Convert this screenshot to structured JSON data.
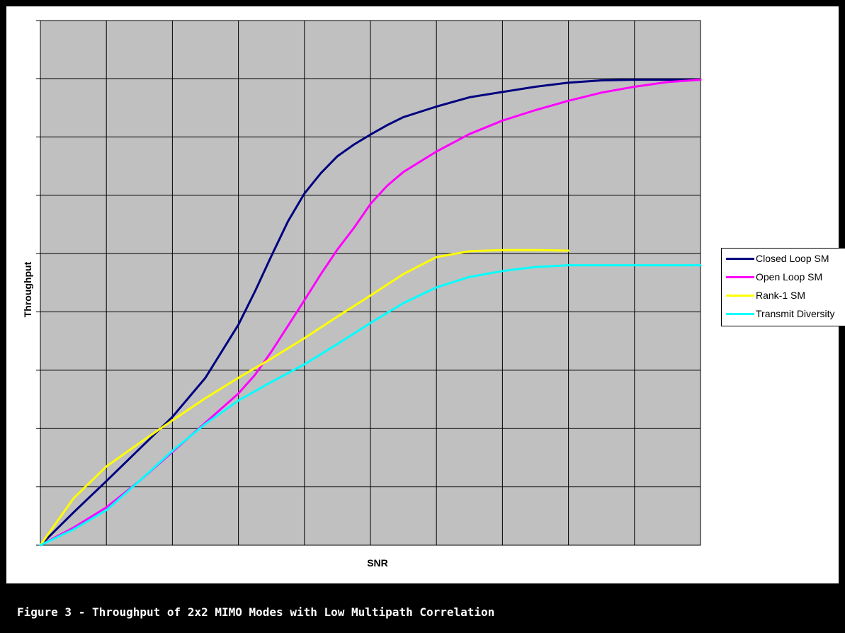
{
  "caption": "Figure 3 - Throughput of 2x2 MIMO Modes with Low Multipath Correlation",
  "chart_data": {
    "type": "line",
    "title": "",
    "xlabel": "SNR",
    "ylabel": "Throughput",
    "xlim": [
      0,
      10
    ],
    "ylim": [
      0,
      8
    ],
    "grid": true,
    "plot_background": "#c0c0c0",
    "legend_position": "right",
    "series": [
      {
        "name": "Closed Loop SM",
        "color": "#000080",
        "x": [
          0,
          0.5,
          1,
          1.5,
          2,
          2.5,
          3,
          3.25,
          3.5,
          3.75,
          4,
          4.25,
          4.5,
          4.75,
          5,
          5.25,
          5.5,
          6,
          6.5,
          7,
          7.5,
          8,
          8.5,
          9,
          9.5,
          10
        ],
        "y": [
          0,
          0.56,
          1.1,
          1.65,
          2.2,
          2.87,
          3.78,
          4.35,
          4.96,
          5.55,
          6.03,
          6.38,
          6.67,
          6.87,
          7.04,
          7.2,
          7.34,
          7.52,
          7.68,
          7.77,
          7.86,
          7.93,
          7.97,
          7.98,
          7.98,
          7.98
        ]
      },
      {
        "name": "Open Loop SM",
        "color": "#ff00ff",
        "x": [
          0,
          0.5,
          1,
          1.5,
          2,
          2.5,
          3,
          3.25,
          3.5,
          3.75,
          4,
          4.25,
          4.5,
          4.75,
          5,
          5.25,
          5.5,
          6,
          6.5,
          7,
          7.5,
          8,
          8.5,
          9,
          9.5,
          10
        ],
        "y": [
          0,
          0.3,
          0.65,
          1.1,
          1.6,
          2.1,
          2.6,
          2.92,
          3.32,
          3.76,
          4.2,
          4.65,
          5.07,
          5.44,
          5.85,
          6.16,
          6.4,
          6.75,
          7.05,
          7.28,
          7.46,
          7.62,
          7.76,
          7.86,
          7.94,
          7.98
        ]
      },
      {
        "name": "Rank-1 SM",
        "color": "#ffff00",
        "x": [
          0,
          0.5,
          1,
          1.5,
          2,
          2.5,
          3,
          3.5,
          4,
          4.5,
          5,
          5.5,
          6,
          6.5,
          7,
          7.5,
          8
        ],
        "y": [
          0,
          0.8,
          1.35,
          1.75,
          2.14,
          2.52,
          2.87,
          3.2,
          3.55,
          3.92,
          4.28,
          4.65,
          4.94,
          5.04,
          5.06,
          5.06,
          5.05
        ]
      },
      {
        "name": "Transmit Diversity",
        "color": "#00ffff",
        "x": [
          0,
          0.5,
          1,
          1.5,
          2,
          2.5,
          3,
          3.5,
          4,
          4.5,
          5,
          5.5,
          6,
          6.5,
          7,
          7.5,
          8,
          9,
          10
        ],
        "y": [
          0,
          0.27,
          0.6,
          1.1,
          1.62,
          2.08,
          2.48,
          2.8,
          3.1,
          3.45,
          3.81,
          4.15,
          4.42,
          4.6,
          4.7,
          4.77,
          4.8,
          4.8,
          4.8
        ]
      }
    ]
  }
}
